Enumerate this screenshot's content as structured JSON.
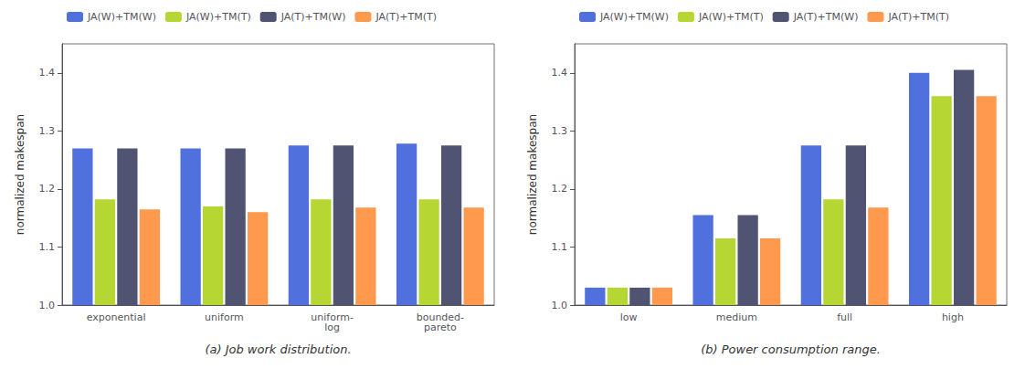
{
  "chart_data": [
    {
      "type": "bar",
      "categories": [
        "exponential",
        "uniform",
        "uniform-\nlog",
        "bounded-\npareto"
      ],
      "series": [
        {
          "name": "JA(W)+TM(W)",
          "values": [
            1.27,
            1.27,
            1.275,
            1.278
          ]
        },
        {
          "name": "JA(W)+TM(T)",
          "values": [
            1.182,
            1.17,
            1.182,
            1.182
          ]
        },
        {
          "name": "JA(T)+TM(W)",
          "values": [
            1.27,
            1.27,
            1.275,
            1.275
          ]
        },
        {
          "name": "JA(T)+TM(T)",
          "values": [
            1.165,
            1.16,
            1.168,
            1.168
          ]
        }
      ],
      "ylabel": "normalized makespan",
      "xlabel": "(a) Job work distribution.",
      "ylim": [
        1.0,
        1.45
      ],
      "yticks": [
        {
          "value": 1.0,
          "label": "1.0"
        },
        1.1,
        1.2,
        1.3,
        1.4
      ],
      "grid": false,
      "legend": "upper left"
    },
    {
      "type": "bar",
      "categories": [
        "low",
        "medium",
        "full",
        "high"
      ],
      "series": [
        {
          "name": "JA(W)+TM(W)",
          "values": [
            1.03,
            1.155,
            1.275,
            1.4
          ]
        },
        {
          "name": "JA(W)+TM(T)",
          "values": [
            1.03,
            1.115,
            1.182,
            1.36
          ]
        },
        {
          "name": "JA(T)+TM(W)",
          "values": [
            1.03,
            1.155,
            1.275,
            1.405
          ]
        },
        {
          "name": "JA(T)+TM(T)",
          "values": [
            1.03,
            1.115,
            1.168,
            1.36
          ]
        }
      ],
      "ylabel": "normalized makespan",
      "xlabel": "(b) Power consumption range.",
      "ylim": [
        1.0,
        1.45
      ],
      "yticks": [
        {
          "value": 1.0,
          "label": "1.0"
        },
        1.1,
        1.2,
        1.3,
        1.4
      ],
      "grid": false,
      "legend": "upper left"
    }
  ]
}
